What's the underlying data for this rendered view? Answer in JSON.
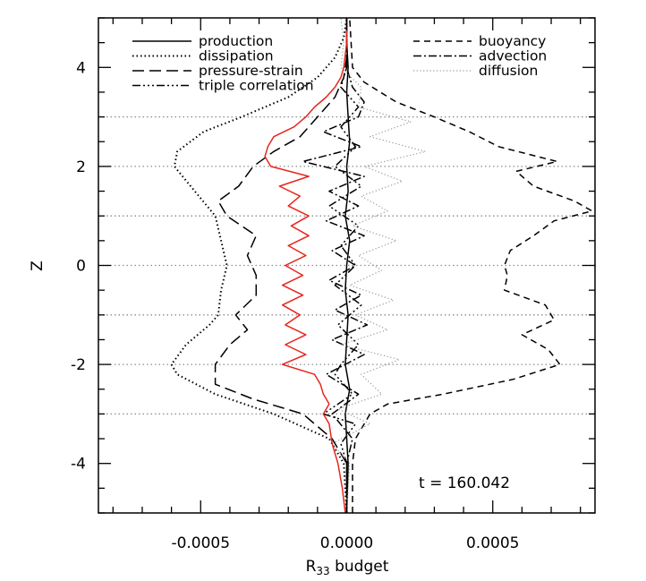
{
  "chart_data": {
    "type": "line",
    "title": "",
    "xlabel": "R",
    "xlabel_subscript": "33",
    "xlabel_suffix": " budget",
    "ylabel": "Z",
    "xlim": [
      -0.00085,
      0.00085
    ],
    "ylim": [
      -5,
      5
    ],
    "xticks": [
      -0.0005,
      0.0,
      0.0005
    ],
    "xtick_labels": [
      "-0.0005",
      "0.0000",
      "0.0005"
    ],
    "yticks": [
      -4,
      -2,
      0,
      2,
      4
    ],
    "ytick_labels": [
      "-4",
      "-2",
      "0",
      "2",
      "4"
    ],
    "grid": "horizontal dotted reference lines at z = -3, -2, -1, 0, 1, 2, 3",
    "hlines": [
      -3,
      -2,
      -1,
      0,
      1,
      2,
      3
    ],
    "annotation": "t = 160.042",
    "legend": {
      "left": [
        "production",
        "dissipation",
        "pressure-strain",
        "triple correlation"
      ],
      "right": [
        "buoyancy",
        "advection",
        "diffusion"
      ]
    },
    "series": [
      {
        "name": "production",
        "style": "solid",
        "color": "#000000",
        "z": [
          -5,
          -4,
          -3,
          -2.5,
          -2,
          -1.5,
          -1,
          -0.5,
          0,
          0.5,
          1,
          1.5,
          2,
          2.5,
          3,
          3.5,
          4,
          4.5,
          5
        ],
        "x": [
          0.0,
          5e-06,
          -5e-06,
          1e-05,
          -5e-06,
          0.0,
          5e-06,
          -5e-06,
          0.0,
          1e-05,
          -5e-06,
          5e-06,
          0.0,
          1e-05,
          5e-06,
          0.0,
          5e-06,
          0.0,
          0.0
        ]
      },
      {
        "name": "dissipation",
        "style": "dotted",
        "color": "#000000",
        "z": [
          -5,
          -4,
          -3.5,
          -3,
          -2.6,
          -2.2,
          -2,
          -1.6,
          -1.2,
          -1,
          -0.5,
          0,
          0.5,
          1,
          1.5,
          2,
          2.3,
          2.7,
          3,
          3.4,
          3.8,
          4.2,
          4.6,
          5
        ],
        "x": [
          0.0,
          -1e-05,
          -6e-05,
          -0.00025,
          -0.00045,
          -0.00058,
          -0.0006,
          -0.00055,
          -0.00047,
          -0.00044,
          -0.00043,
          -0.00041,
          -0.00043,
          -0.00045,
          -0.00052,
          -0.00059,
          -0.00058,
          -0.00049,
          -0.00036,
          -0.0002,
          -0.0001,
          -4e-05,
          -1e-05,
          0.0
        ]
      },
      {
        "name": "pressure-strain",
        "style": "long-dash",
        "color": "#000000",
        "z": [
          -5,
          -4,
          -3.5,
          -3,
          -2.7,
          -2.4,
          -2,
          -1.6,
          -1.3,
          -1,
          -0.6,
          -0.2,
          0.2,
          0.6,
          1,
          1.3,
          1.6,
          2,
          2.3,
          2.6,
          3,
          3.4,
          3.8,
          4.2,
          5
        ],
        "x": [
          0.0,
          0.0,
          -5e-05,
          -0.00015,
          -0.00032,
          -0.00045,
          -0.00045,
          -0.0004,
          -0.00034,
          -0.00038,
          -0.00031,
          -0.00031,
          -0.00034,
          -0.00031,
          -0.00041,
          -0.00044,
          -0.00037,
          -0.00032,
          -0.00025,
          -0.00016,
          -0.0001,
          -4e-05,
          -1e-05,
          0.0,
          0.0
        ]
      },
      {
        "name": "triple correlation",
        "style": "dash-dot-dot",
        "color": "#000000",
        "z": [
          -5,
          -4,
          -3.6,
          -3.2,
          -3,
          -2.6,
          -2.2,
          -2,
          -1.6,
          -1.2,
          -0.8,
          -0.4,
          0,
          0.4,
          0.8,
          1.2,
          1.6,
          2,
          2.4,
          2.8,
          3.2,
          3.6,
          4,
          5
        ],
        "x": [
          0.0,
          0.0,
          -2e-05,
          3e-05,
          -8e-05,
          2e-05,
          -4e-05,
          -2e-05,
          4e-05,
          -3e-05,
          5e-05,
          -4e-05,
          3e-05,
          -2e-05,
          4e-05,
          -6e-05,
          5e-05,
          -4e-05,
          3e-05,
          -2e-05,
          4e-05,
          -2e-05,
          0.0,
          0.0
        ]
      },
      {
        "name": "buoyancy",
        "style": "dash",
        "color": "#000000",
        "z": [
          -5,
          -4,
          -3.5,
          -3,
          -2.8,
          -2.6,
          -2.3,
          -2,
          -1.7,
          -1.4,
          -1.1,
          -0.8,
          -0.5,
          -0.2,
          0,
          0.3,
          0.6,
          0.9,
          1.1,
          1.3,
          1.6,
          1.9,
          2.1,
          2.4,
          2.7,
          3,
          3.3,
          3.7,
          4,
          5
        ],
        "x": [
          2e-05,
          2e-05,
          3e-05,
          8e-05,
          0.00014,
          0.00033,
          0.00057,
          0.00073,
          0.00069,
          0.0006,
          0.00071,
          0.00068,
          0.00054,
          0.00055,
          0.00054,
          0.00056,
          0.00064,
          0.00071,
          0.00084,
          0.00078,
          0.00064,
          0.00058,
          0.00072,
          0.00052,
          0.00042,
          0.0003,
          0.00017,
          6e-05,
          2e-05,
          1e-05
        ]
      },
      {
        "name": "advection",
        "style": "dash-dot",
        "color": "#000000",
        "z": [
          -5,
          -4,
          -3.5,
          -3,
          -2.6,
          -2.2,
          -1.8,
          -1.5,
          -1.2,
          -0.9,
          -0.6,
          -0.3,
          0,
          0.3,
          0.6,
          0.9,
          1.2,
          1.5,
          1.8,
          2.1,
          2.4,
          2.7,
          3,
          3.3,
          3.6,
          4,
          5
        ],
        "x": [
          0.0,
          0.0,
          2e-05,
          -5e-05,
          4e-05,
          -7e-05,
          6e-05,
          -5e-05,
          7e-05,
          -4e-05,
          5e-05,
          -6e-05,
          3e-05,
          -5e-05,
          6e-05,
          -7e-05,
          4e-05,
          -6e-05,
          6e-05,
          -0.00015,
          5e-05,
          -8e-05,
          4e-05,
          6e-05,
          2e-05,
          0.0,
          0.0
        ]
      },
      {
        "name": "diffusion",
        "style": "light-dotted",
        "color": "#999999",
        "z": [
          -5,
          -4,
          -3.6,
          -3.2,
          -2.9,
          -2.6,
          -2.2,
          -1.9,
          -1.6,
          -1.3,
          -1.0,
          -0.7,
          -0.4,
          -0.1,
          0.2,
          0.5,
          0.8,
          1.1,
          1.4,
          1.7,
          2.0,
          2.3,
          2.6,
          2.9,
          3.2,
          3.6,
          4,
          4.5,
          5
        ],
        "x": [
          0.0,
          1e-05,
          -5e-05,
          8e-05,
          -3e-05,
          0.00012,
          5e-05,
          0.00018,
          -2e-05,
          0.00014,
          3e-05,
          0.00016,
          1e-05,
          0.00012,
          4e-05,
          0.00017,
          2e-05,
          0.00014,
          5e-05,
          0.00019,
          6e-05,
          0.00027,
          8e-05,
          0.00022,
          4e-05,
          5e-05,
          -2e-05,
          -1e-05,
          -2e-05
        ]
      },
      {
        "name": "red curve",
        "style": "solid",
        "color": "#e8251e",
        "z": [
          -5,
          -4.5,
          -4,
          -3.6,
          -3.2,
          -3,
          -2.8,
          -2.6,
          -2.4,
          -2.2,
          -2.0,
          -1.8,
          -1.6,
          -1.4,
          -1.2,
          -1.0,
          -0.8,
          -0.6,
          -0.4,
          -0.2,
          0,
          0.2,
          0.4,
          0.6,
          0.8,
          1.0,
          1.2,
          1.4,
          1.6,
          1.8,
          2.0,
          2.2,
          2.4,
          2.6,
          2.8,
          3.0,
          3.2,
          3.4,
          3.6,
          3.8,
          4.0,
          4.5,
          5
        ],
        "x": [
          -5e-06,
          -1.5e-05,
          -3e-05,
          -5e-05,
          -6e-05,
          -8e-05,
          -6e-05,
          -8e-05,
          -9e-05,
          -0.00011,
          -0.00022,
          -0.00014,
          -0.00021,
          -0.00014,
          -0.00021,
          -0.00016,
          -0.00022,
          -0.00015,
          -0.00022,
          -0.00015,
          -0.00021,
          -0.00014,
          -0.0002,
          -0.00013,
          -0.00019,
          -0.00013,
          -0.0002,
          -0.00016,
          -0.00023,
          -0.00013,
          -0.00026,
          -0.00028,
          -0.00027,
          -0.00025,
          -0.00018,
          -0.00014,
          -0.00011,
          -7e-05,
          -4e-05,
          -2e-05,
          -1e-05,
          0.0,
          0.0
        ]
      }
    ]
  }
}
